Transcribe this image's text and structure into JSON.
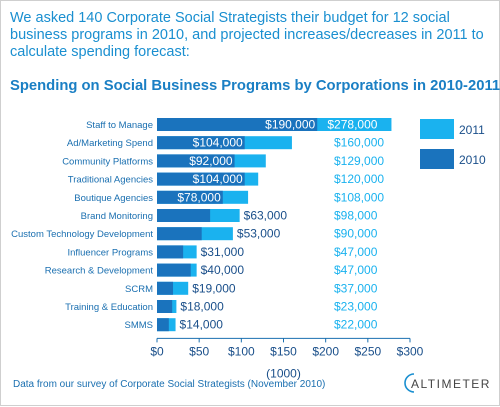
{
  "intro_text": "We asked 140 Corporate Social Strategists their budget for 12 social business programs in 2010, and projected increases/decreases in 2011 to calculate spending forecast:",
  "footer_text": "Data from our survey of Corporate Social Strategists (November 2010)",
  "logo_text": "ALTIMETER",
  "colors": {
    "series_2011": "#1ab2ef",
    "series_2010": "#1a73bd",
    "text_blue": "#1a8fd0",
    "title_blue": "#1a7fc4",
    "label_2011": "#1ab2ef"
  },
  "chart_data": {
    "type": "bar",
    "orientation": "horizontal",
    "stacked": "overlay",
    "title": "Spending on Social Business Programs by Corporations in 2010-2011",
    "xlabel": "(1000)",
    "ylabel": "",
    "xlim": [
      0,
      300
    ],
    "x_ticks": [
      "$0",
      "$50",
      "$100",
      "$150",
      "$200",
      "$250",
      "$300"
    ],
    "grid": false,
    "legend_position": "right",
    "categories": [
      "Staff to Manage",
      "Ad/Marketing Spend",
      "Community Platforms",
      "Traditional Agencies",
      "Boutique Agencies",
      "Brand Monitoring",
      "Custom Technology Development",
      "Influencer Programs",
      "Research & Development",
      "SCRM",
      "Training & Education",
      "SMMS"
    ],
    "series": [
      {
        "name": "2011",
        "values": [
          278,
          160,
          129,
          120,
          108,
          98,
          90,
          47,
          47,
          37,
          23,
          22
        ],
        "labels": [
          "$278,000",
          "$160,000",
          "$129,000",
          "$120,000",
          "$108,000",
          "$98,000",
          "$90,000",
          "$47,000",
          "$47,000",
          "$37,000",
          "$23,000",
          "$22,000"
        ]
      },
      {
        "name": "2010",
        "values": [
          190,
          104,
          92,
          104,
          78,
          63,
          53,
          31,
          40,
          19,
          18,
          14
        ],
        "labels": [
          "$190,000",
          "$104,000",
          "$92,000",
          "$104,000",
          "$78,000",
          "$63,000",
          "$53,000",
          "$31,000",
          "$40,000",
          "$19,000",
          "$18,000",
          "$14,000"
        ]
      }
    ]
  }
}
